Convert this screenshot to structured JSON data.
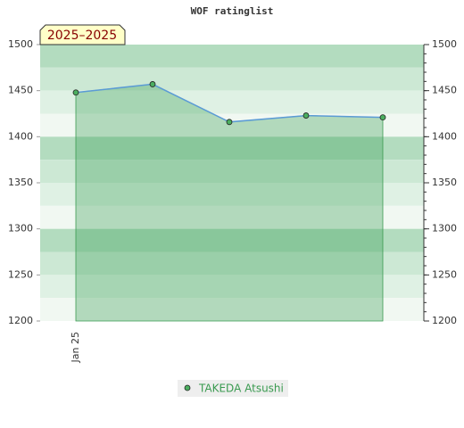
{
  "chart_data": {
    "type": "line",
    "title": "WOF ratinglist",
    "badge": "2025–2025",
    "categories": [
      "Jan 25",
      null,
      null,
      null,
      null
    ],
    "series": [
      {
        "name": "TAKEDA Atsushi",
        "color": "#5b9bd5",
        "values": [
          1448,
          1457,
          1416,
          1423,
          1421
        ]
      }
    ],
    "ylim": [
      1200,
      1500
    ],
    "yticks": [
      1200,
      1250,
      1300,
      1350,
      1400,
      1450,
      1500
    ],
    "y2lim": [
      1200,
      1500
    ],
    "y2ticks": [
      1200,
      1250,
      1300,
      1350,
      1400,
      1450,
      1500
    ],
    "grid": true,
    "legend": "bottom"
  }
}
